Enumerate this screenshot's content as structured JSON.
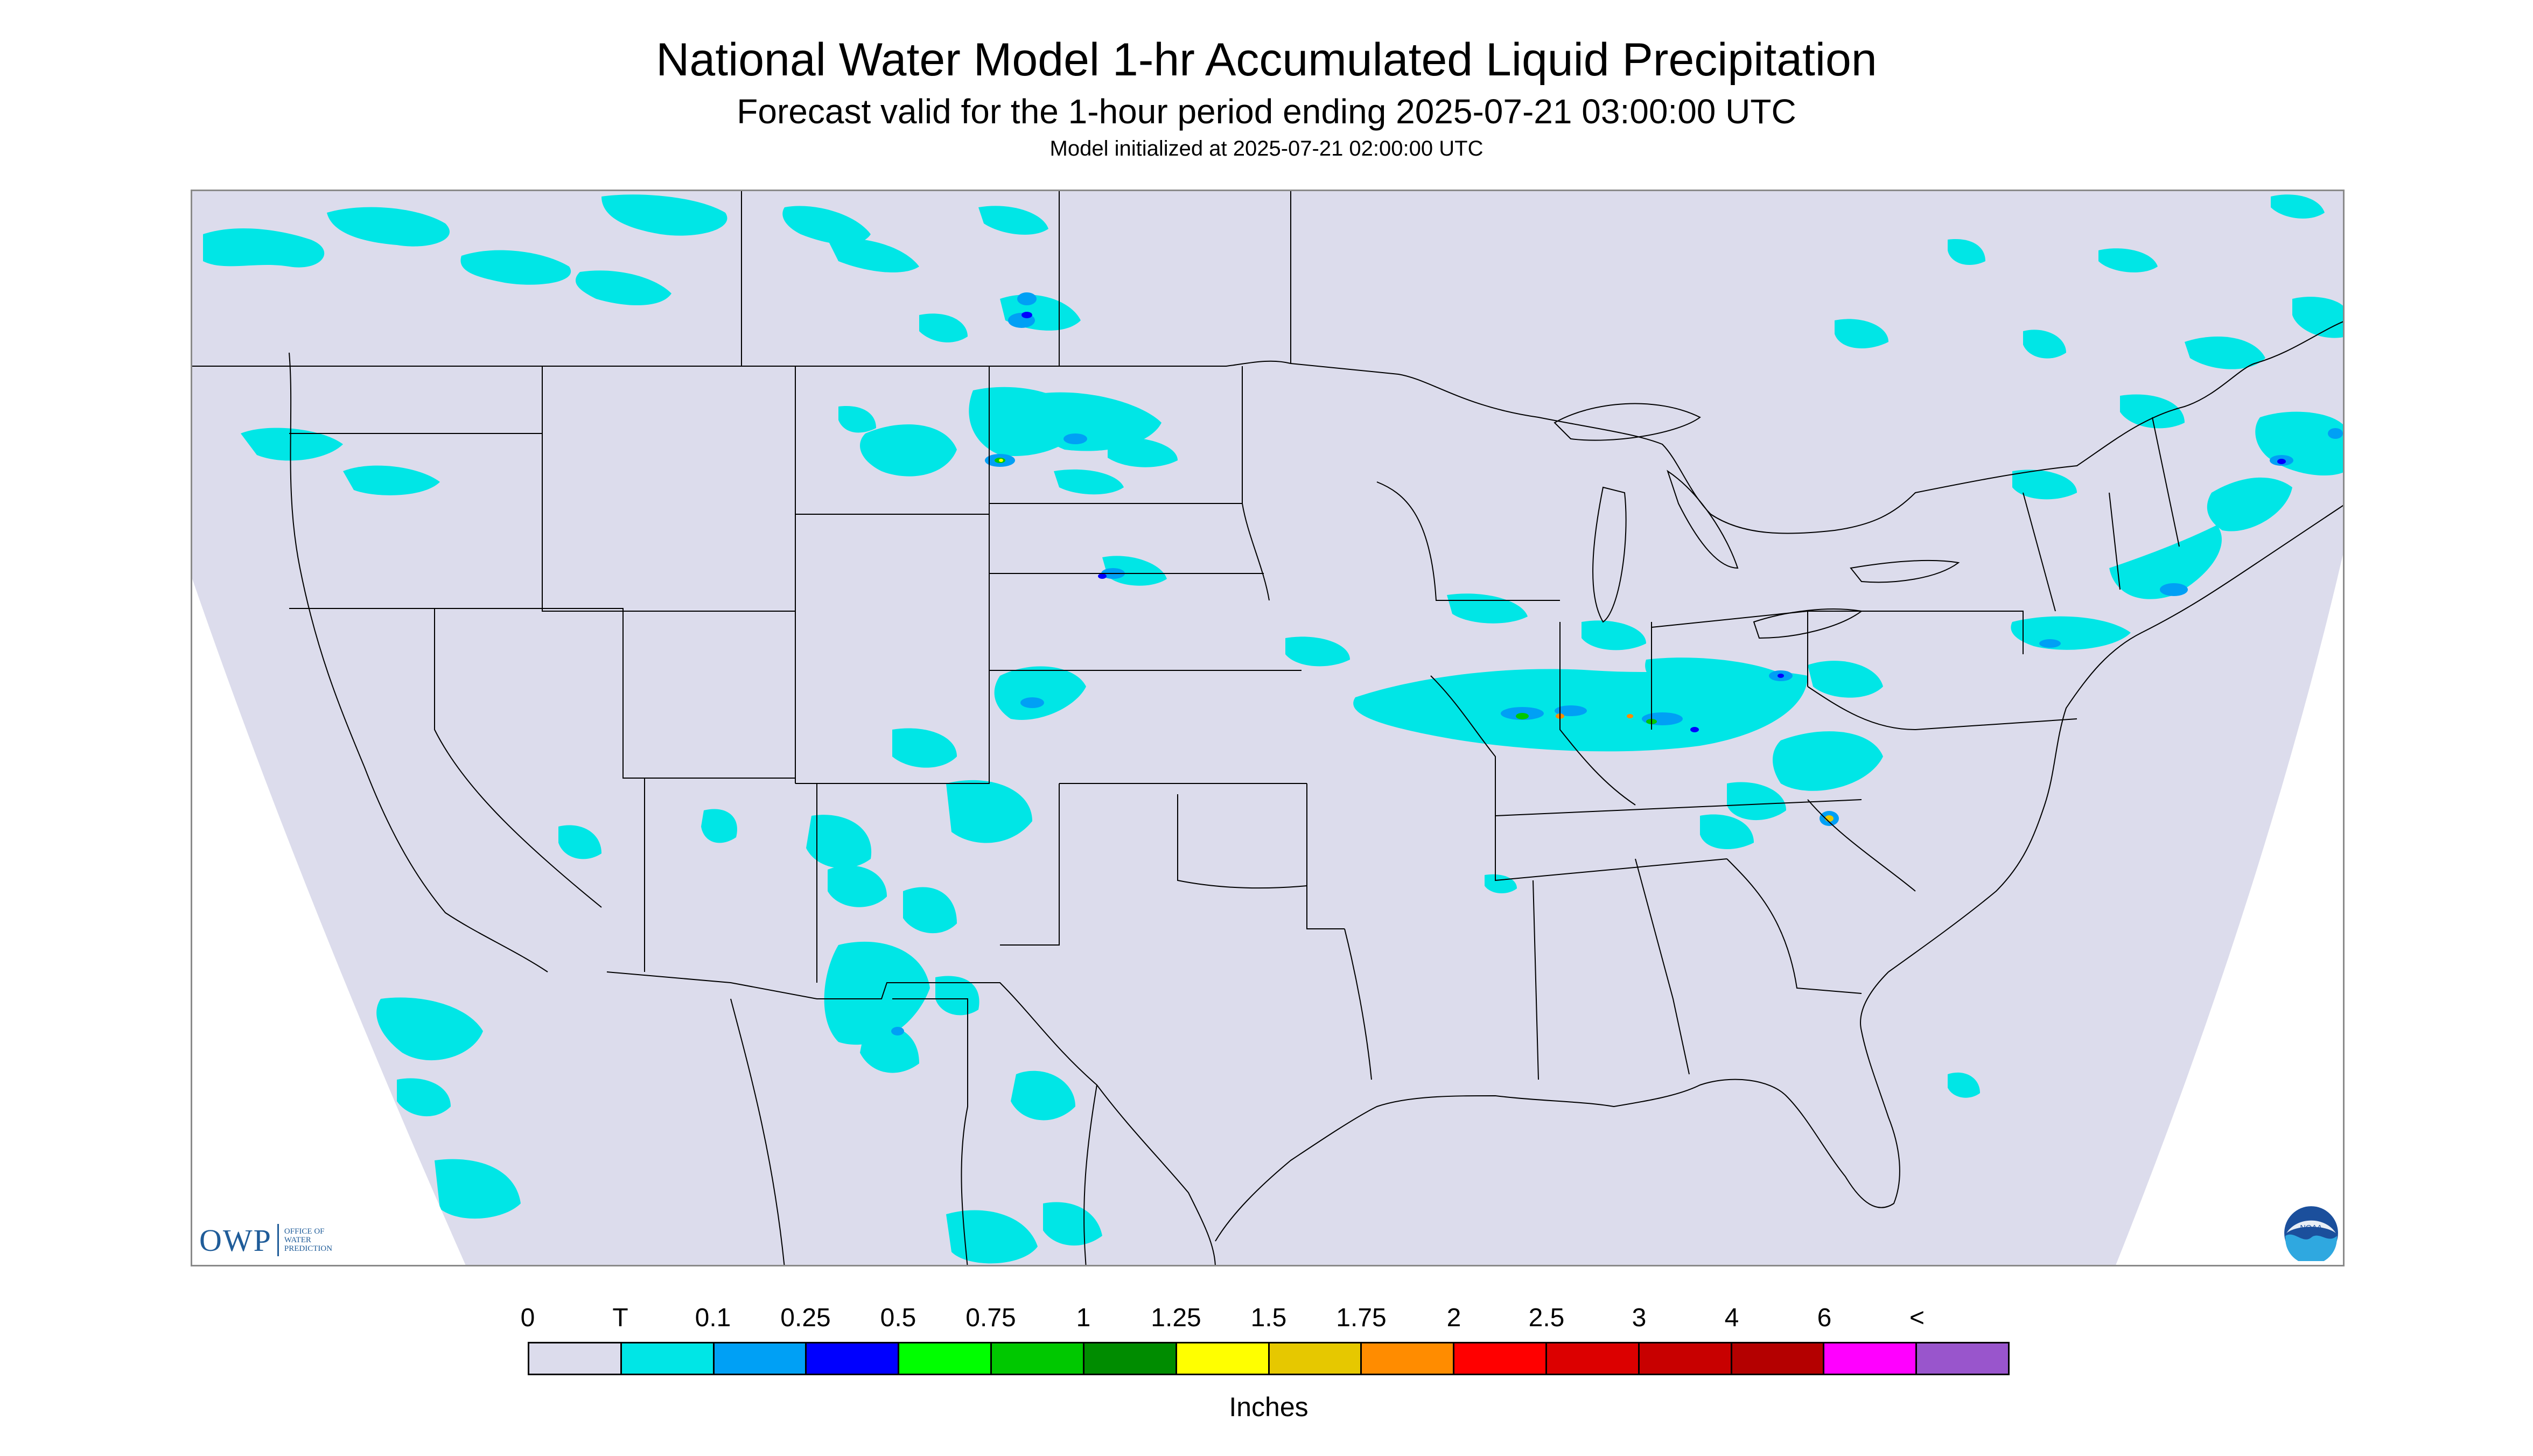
{
  "header": {
    "title": "National Water Model 1-hr Accumulated Liquid Precipitation",
    "subtitle": "Forecast valid for the 1-hour period ending 2025-07-21 03:00:00 UTC",
    "init_line": "Model initialized at 2025-07-21 02:00:00 UTC"
  },
  "map": {
    "background_color": "#dcdcec",
    "outside_domain_color": "#ffffff",
    "boundary_color": "#000000"
  },
  "legend": {
    "labels": [
      "0",
      "T",
      "0.1",
      "0.25",
      "0.5",
      "0.75",
      "1",
      "1.25",
      "1.5",
      "1.75",
      "2",
      "2.5",
      "3",
      "4",
      "6",
      "<"
    ],
    "colors": [
      "#dcdcec",
      "#00e6e6",
      "#00a0f5",
      "#0000ff",
      "#00ff00",
      "#00c800",
      "#008c00",
      "#ffff00",
      "#e6c800",
      "#ff8c00",
      "#ff0000",
      "#dc0000",
      "#c80000",
      "#b40000",
      "#ff00ff",
      "#9955cc"
    ],
    "units": "Inches"
  },
  "logos": {
    "owp_text": "OWP",
    "owp_subtext": [
      "Office of",
      "Water",
      "Prediction"
    ],
    "noaa_text": "NOAA"
  }
}
